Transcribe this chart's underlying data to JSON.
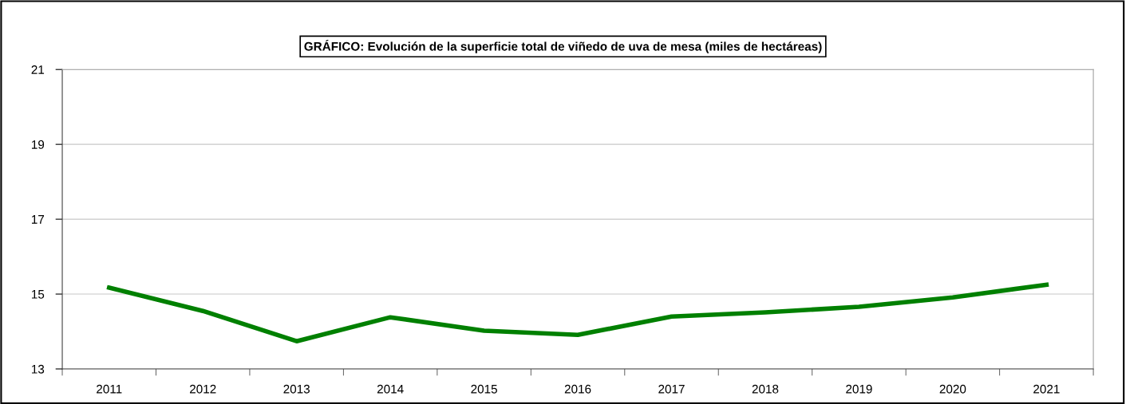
{
  "chart_data": {
    "type": "line",
    "title": "GRÁFICO: Evolución de la superficie total de viñedo de uva de mesa (miles de hectáreas)",
    "categories": [
      "2011",
      "2012",
      "2013",
      "2014",
      "2015",
      "2016",
      "2017",
      "2018",
      "2019",
      "2020",
      "2021"
    ],
    "series": [
      {
        "color": "#008000",
        "values": [
          15.17,
          14.55,
          13.74,
          14.38,
          14.02,
          13.91,
          14.4,
          14.51,
          14.66,
          14.91,
          15.25
        ]
      }
    ],
    "ylim": [
      13,
      21
    ],
    "yticks": [
      13,
      15,
      17,
      19,
      21
    ],
    "grid": "y",
    "marker": "none",
    "line_style": "solid"
  }
}
